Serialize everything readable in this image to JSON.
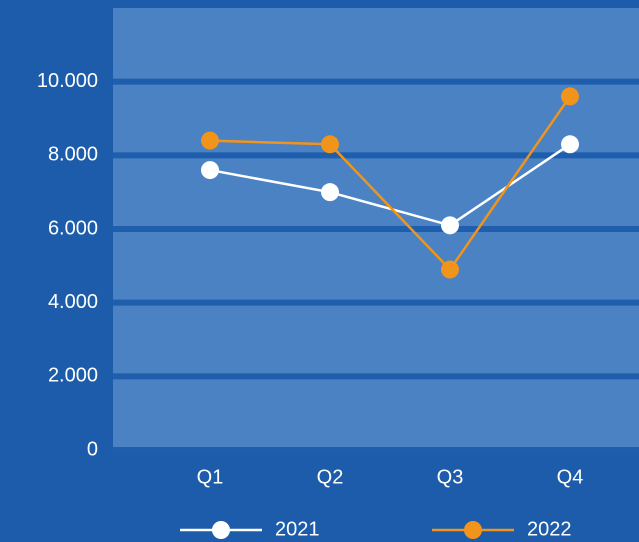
{
  "chart_data": {
    "type": "line",
    "categories": [
      "Q1",
      "Q2",
      "Q3",
      "Q4"
    ],
    "series": [
      {
        "name": "2021",
        "color": "#ffffff",
        "values": [
          7600,
          7000,
          6100,
          8300
        ]
      },
      {
        "name": "2022",
        "color": "#f0941c",
        "values": [
          8400,
          8300,
          4900,
          9600
        ]
      }
    ],
    "ylim": [
      0,
      12000
    ],
    "yticks": [
      0,
      {
        "value": 2000,
        "label": "2.000"
      },
      {
        "value": 4000,
        "label": "4.000"
      },
      {
        "value": 6000,
        "label": "6.000"
      },
      {
        "value": 8000,
        "label": "8.000"
      },
      {
        "value": 10000,
        "label": "10.000"
      }
    ],
    "grid": true,
    "legend": "bottom"
  }
}
